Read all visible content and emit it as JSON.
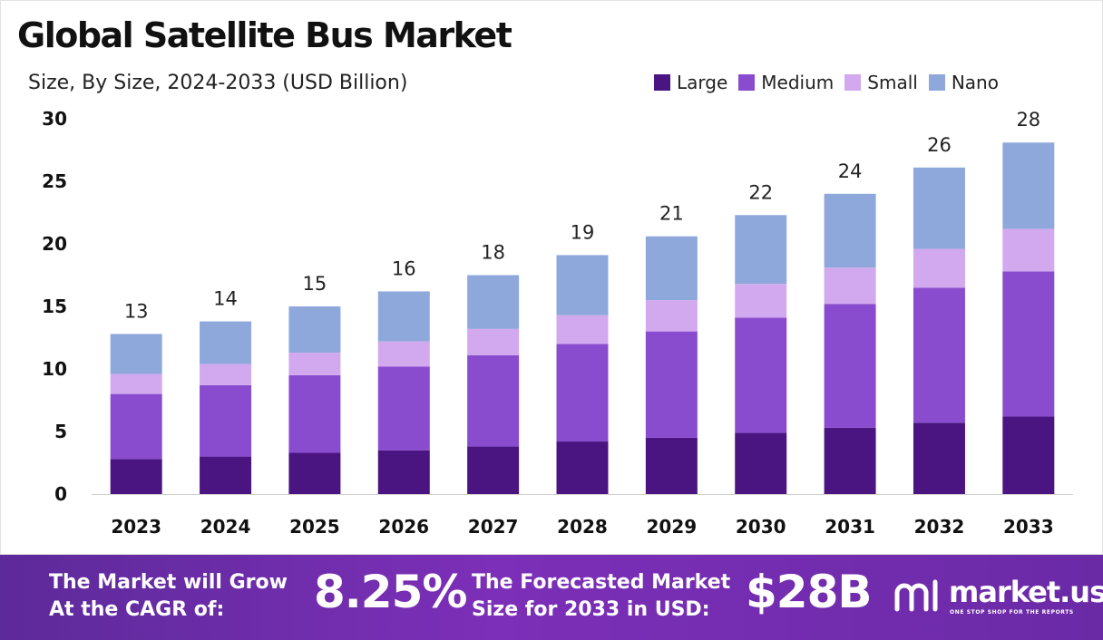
{
  "header": {
    "title": "Global Satellite Bus Market",
    "subtitle": "Size, By Size, 2024-2033 (USD Billion)"
  },
  "colors": {
    "large": "#4a1580",
    "medium": "#8a4ccf",
    "small": "#d2a9ee",
    "nano": "#8fa8dc",
    "banner": "#6a2aa6"
  },
  "chart_data": {
    "type": "bar",
    "stacked": true,
    "title": "Global Satellite Bus Market",
    "subtitle": "Size, By Size, 2024-2033 (USD Billion)",
    "categories": [
      "2023",
      "2024",
      "2025",
      "2026",
      "2027",
      "2028",
      "2029",
      "2030",
      "2031",
      "2032",
      "2033"
    ],
    "series": [
      {
        "name": "Large",
        "color": "#4a1580",
        "values": [
          2.8,
          3.0,
          3.3,
          3.5,
          3.8,
          4.2,
          4.5,
          4.9,
          5.3,
          5.7,
          6.2
        ]
      },
      {
        "name": "Medium",
        "color": "#8a4ccf",
        "values": [
          5.2,
          5.7,
          6.2,
          6.7,
          7.3,
          7.8,
          8.5,
          9.2,
          9.9,
          10.8,
          11.6
        ]
      },
      {
        "name": "Small",
        "color": "#d2a9ee",
        "values": [
          1.6,
          1.7,
          1.8,
          2.0,
          2.1,
          2.3,
          2.5,
          2.7,
          2.9,
          3.1,
          3.4
        ]
      },
      {
        "name": "Nano",
        "color": "#8fa8dc",
        "values": [
          3.2,
          3.4,
          3.7,
          4.0,
          4.3,
          4.8,
          5.1,
          5.5,
          5.9,
          6.5,
          6.9
        ]
      }
    ],
    "totals": [
      "13",
      "14",
      "15",
      "16",
      "18",
      "19",
      "21",
      "22",
      "24",
      "26",
      "28"
    ],
    "ylim": [
      0,
      30
    ],
    "yticks": [
      "0",
      "5",
      "10",
      "15",
      "20",
      "25",
      "30"
    ],
    "ytick_values": [
      0,
      5,
      10,
      15,
      20,
      25,
      30
    ],
    "legend_position": "top-right",
    "grid": false
  },
  "banner": {
    "cagr_label_line1": "The Market will Grow",
    "cagr_label_line2": "At the CAGR of:",
    "cagr_value": "8.25%",
    "forecast_label_line1": "The Forecasted Market",
    "forecast_label_line2": "Size for 2033 in USD:",
    "forecast_value": "$28B",
    "brand_name": "market.us",
    "brand_tagline": "ONE STOP SHOP FOR THE REPORTS",
    "brand_logo_icon": "market-us-logo-icon"
  }
}
